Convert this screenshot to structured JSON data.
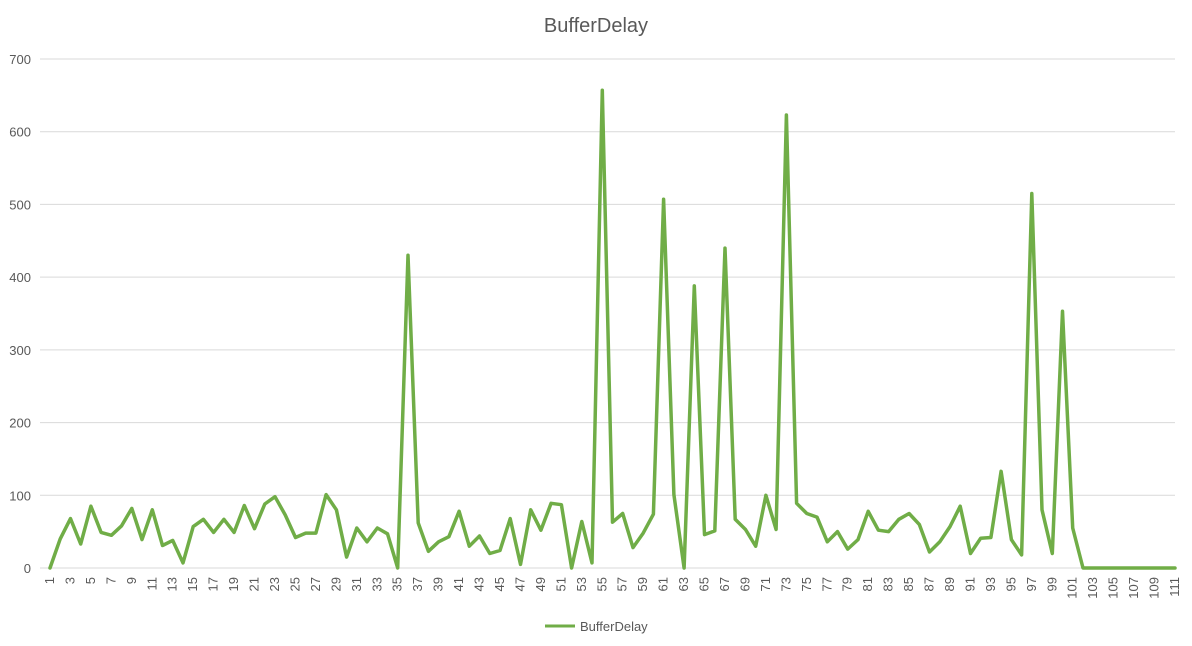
{
  "chart_data": {
    "type": "line",
    "title": "BufferDelay",
    "xlabel": "",
    "ylabel": "",
    "ylim": [
      0,
      700
    ],
    "y_ticks": [
      0,
      100,
      200,
      300,
      400,
      500,
      600,
      700
    ],
    "x_tick_labels": [
      "1",
      "3",
      "5",
      "7",
      "9",
      "11",
      "13",
      "15",
      "17",
      "19",
      "21",
      "23",
      "25",
      "27",
      "29",
      "31",
      "33",
      "35",
      "37",
      "39",
      "41",
      "43",
      "45",
      "47",
      "49",
      "51",
      "53",
      "55",
      "57",
      "59",
      "61",
      "63",
      "65",
      "67",
      "69",
      "71",
      "73",
      "75",
      "77",
      "79",
      "81",
      "83",
      "85",
      "87",
      "89",
      "91",
      "93",
      "95",
      "97",
      "99",
      "101",
      "103",
      "105",
      "107",
      "109",
      "111"
    ],
    "grid": "horizontal",
    "legend": "bottom",
    "series": [
      {
        "name": "BufferDelay",
        "color": "#70ad47",
        "x": [
          1,
          2,
          3,
          4,
          5,
          6,
          7,
          8,
          9,
          10,
          11,
          12,
          13,
          14,
          15,
          16,
          17,
          18,
          19,
          20,
          21,
          22,
          23,
          24,
          25,
          26,
          27,
          28,
          29,
          30,
          31,
          32,
          33,
          34,
          35,
          36,
          37,
          38,
          39,
          40,
          41,
          42,
          43,
          44,
          45,
          46,
          47,
          48,
          49,
          50,
          51,
          52,
          53,
          54,
          55,
          56,
          57,
          58,
          59,
          60,
          61,
          62,
          63,
          64,
          65,
          66,
          67,
          68,
          69,
          70,
          71,
          72,
          73,
          74,
          75,
          76,
          77,
          78,
          79,
          80,
          81,
          82,
          83,
          84,
          85,
          86,
          87,
          88,
          89,
          90,
          91,
          92,
          93,
          94,
          95,
          96,
          97,
          98,
          99,
          100,
          101,
          102,
          103,
          104,
          105,
          106,
          107,
          108,
          109,
          110,
          111
        ],
        "values": [
          0,
          40,
          68,
          33,
          85,
          49,
          45,
          58,
          82,
          39,
          80,
          31,
          38,
          7,
          57,
          67,
          49,
          67,
          49,
          86,
          54,
          88,
          98,
          73,
          42,
          48,
          48,
          101,
          80,
          15,
          55,
          36,
          55,
          47,
          0,
          430,
          62,
          23,
          36,
          43,
          78,
          30,
          44,
          20,
          24,
          68,
          5,
          80,
          52,
          89,
          87,
          0,
          64,
          7,
          657,
          63,
          75,
          28,
          48,
          74,
          507,
          101,
          0,
          388,
          46,
          51,
          440,
          67,
          53,
          30,
          100,
          53,
          623,
          89,
          75,
          70,
          36,
          50,
          26,
          39,
          78,
          52,
          50,
          67,
          75,
          60,
          22,
          36,
          57,
          85,
          20,
          41,
          42,
          133,
          39,
          18,
          515,
          80,
          20,
          353,
          55,
          0,
          0,
          0,
          0,
          0,
          0,
          0,
          0,
          0,
          0
        ]
      }
    ]
  }
}
